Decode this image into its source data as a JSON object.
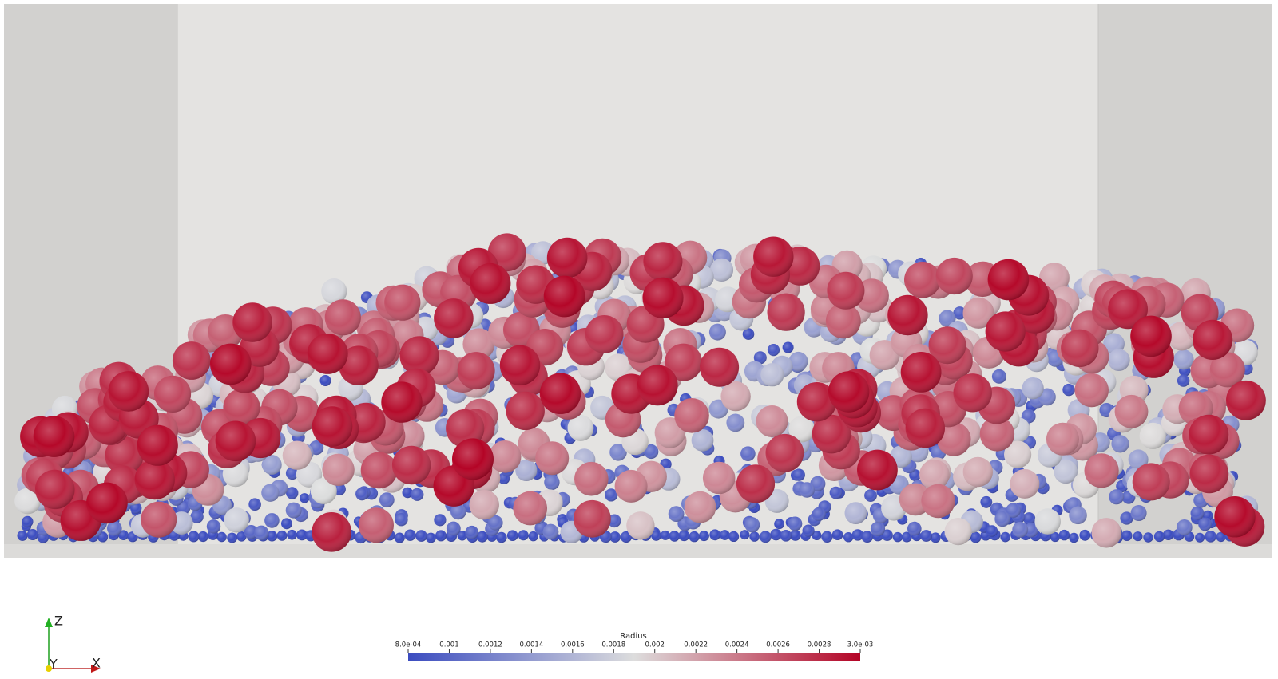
{
  "colorbar": {
    "title": "Radius",
    "range": [
      0.0008,
      0.003
    ],
    "colormap": [
      "#3b4cc0",
      "#dddddd",
      "#b40426"
    ],
    "ticks": [
      {
        "value": 0.0008,
        "label": "8.0e-04"
      },
      0.001,
      0.0012,
      0.0014,
      0.0016,
      0.0018,
      0.002,
      0.0022,
      0.0024,
      0.0026,
      0.0028,
      {
        "value": 0.003,
        "label": "3.0e-03"
      }
    ]
  },
  "axes_triad": {
    "z": "Z",
    "y": "Y",
    "x": "X"
  }
}
